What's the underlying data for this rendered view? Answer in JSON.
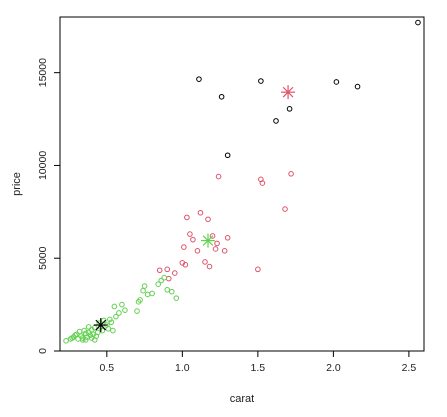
{
  "chart_data": {
    "type": "scatter",
    "title": "",
    "xlabel": "carat",
    "ylabel": "price",
    "xlim": [
      0.19,
      2.6
    ],
    "ylim": [
      0,
      18000
    ],
    "x_ticks": [
      0.5,
      1.0,
      1.5,
      2.0,
      2.5
    ],
    "x_tick_labels": [
      "0.5",
      "1.0",
      "1.5",
      "2.0",
      "2.5"
    ],
    "y_ticks": [
      0,
      5000,
      10000,
      15000
    ],
    "y_tick_labels": [
      "0",
      "5000",
      "10000",
      "15000"
    ],
    "grid": false,
    "series": [
      {
        "color": "#000000",
        "marker": "circle-open",
        "points": [
          [
            1.11,
            14650
          ],
          [
            1.26,
            13700
          ],
          [
            1.52,
            14550
          ],
          [
            2.02,
            14500
          ],
          [
            2.16,
            14250
          ],
          [
            2.56,
            17700
          ],
          [
            1.62,
            12400
          ],
          [
            1.71,
            13050
          ],
          [
            1.3,
            10550
          ]
        ]
      },
      {
        "color": "#df536b",
        "marker": "circle-open",
        "points": [
          [
            1.24,
            9400
          ],
          [
            1.52,
            9250
          ],
          [
            1.53,
            9050
          ],
          [
            1.72,
            9550
          ],
          [
            1.68,
            7650
          ],
          [
            1.12,
            7450
          ],
          [
            1.17,
            7100
          ],
          [
            1.03,
            7200
          ],
          [
            1.05,
            6300
          ],
          [
            1.2,
            6200
          ],
          [
            1.3,
            6100
          ],
          [
            1.23,
            5800
          ],
          [
            1.01,
            5600
          ],
          [
            1.1,
            5400
          ],
          [
            1.22,
            5500
          ],
          [
            1.28,
            5400
          ],
          [
            1.0,
            4750
          ],
          [
            1.02,
            4650
          ],
          [
            1.15,
            4800
          ],
          [
            1.18,
            4550
          ],
          [
            0.9,
            4400
          ],
          [
            0.85,
            4350
          ],
          [
            0.95,
            4200
          ],
          [
            0.91,
            3900
          ],
          [
            1.5,
            4400
          ],
          [
            1.07,
            6000
          ]
        ]
      },
      {
        "color": "#61d04f",
        "marker": "circle-open",
        "points": [
          [
            0.23,
            550
          ],
          [
            0.26,
            650
          ],
          [
            0.28,
            750
          ],
          [
            0.3,
            900
          ],
          [
            0.31,
            650
          ],
          [
            0.32,
            1050
          ],
          [
            0.33,
            800
          ],
          [
            0.34,
            600
          ],
          [
            0.35,
            1100
          ],
          [
            0.36,
            950
          ],
          [
            0.37,
            750
          ],
          [
            0.38,
            1000
          ],
          [
            0.39,
            850
          ],
          [
            0.4,
            700
          ],
          [
            0.4,
            1150
          ],
          [
            0.41,
            900
          ],
          [
            0.42,
            1250
          ],
          [
            0.43,
            800
          ],
          [
            0.44,
            1000
          ],
          [
            0.45,
            1500
          ],
          [
            0.46,
            1300
          ],
          [
            0.47,
            1100
          ],
          [
            0.48,
            1650
          ],
          [
            0.5,
            1400
          ],
          [
            0.51,
            1200
          ],
          [
            0.52,
            1700
          ],
          [
            0.53,
            1550
          ],
          [
            0.54,
            1100
          ],
          [
            0.55,
            2400
          ],
          [
            0.56,
            1850
          ],
          [
            0.58,
            2050
          ],
          [
            0.6,
            2500
          ],
          [
            0.62,
            2200
          ],
          [
            0.7,
            2150
          ],
          [
            0.71,
            2650
          ],
          [
            0.72,
            2750
          ],
          [
            0.74,
            3250
          ],
          [
            0.75,
            3500
          ],
          [
            0.77,
            3050
          ],
          [
            0.8,
            3100
          ],
          [
            0.84,
            3600
          ],
          [
            0.86,
            3800
          ],
          [
            0.88,
            3950
          ],
          [
            0.9,
            3300
          ],
          [
            0.93,
            3200
          ],
          [
            0.96,
            2850
          ],
          [
            0.34,
            700
          ],
          [
            0.36,
            600
          ],
          [
            0.38,
            1300
          ],
          [
            0.27,
            700
          ],
          [
            0.29,
            850
          ],
          [
            0.42,
            600
          ]
        ]
      }
    ],
    "centers": [
      {
        "color": "#000000",
        "marker": "asterisk",
        "x": 0.46,
        "y": 1400
      },
      {
        "color": "#61d04f",
        "marker": "asterisk",
        "x": 1.17,
        "y": 5950
      },
      {
        "color": "#df536b",
        "marker": "asterisk",
        "x": 1.7,
        "y": 13950
      }
    ]
  }
}
